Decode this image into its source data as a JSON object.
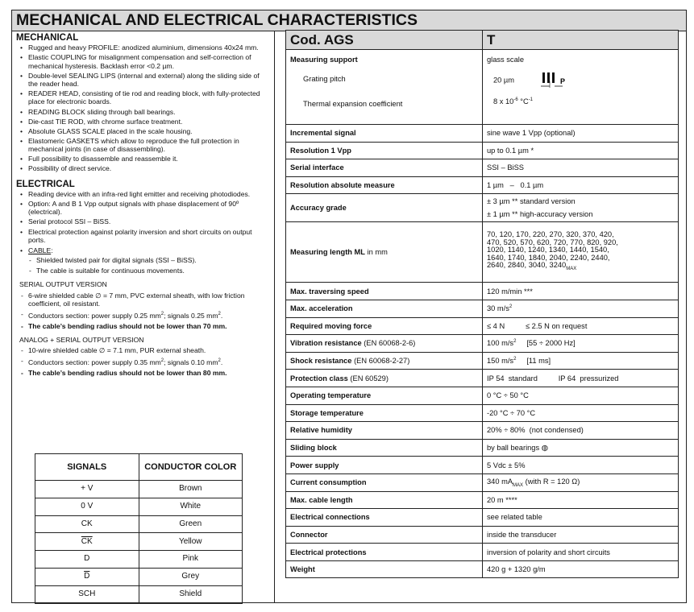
{
  "title": "MECHANICAL AND ELECTRICAL CHARACTERISTICS",
  "mechanical": {
    "heading": "MECHANICAL",
    "items": [
      "Rugged and heavy PROFILE: anodized aluminium, dimensions 40x24 mm.",
      "Elastic COUPLING for misalignment compensation and self-correction of mechanical hysteresis. Backlash error <0.2 µm.",
      "Double-level SEALING LIPS (internal and external) along the sliding side of the reader head.",
      "READER HEAD, consisting of tie rod and reading block, with fully-protected place for electronic boards.",
      "READING BLOCK sliding through ball bearings.",
      "Die-cast TIE ROD, with chrome surface treatment.",
      "Absolute GLASS SCALE placed in the scale housing.",
      "Elastomeric GASKETS which allow to reproduce the full protection in mechanical joints (in case of disassembling).",
      "Full possibility to disassemble and reassemble it.",
      "Possibility of direct service."
    ]
  },
  "electrical": {
    "heading": "ELECTRICAL",
    "items": [
      "Reading device with an infra-red light emitter and receiving photodiodes.",
      "Option: A and B 1 Vpp output signals with phase displacement of 90º (electrical).",
      "Serial protocol SSI – BiSS.",
      "Electrical protection against polarity inversion and short circuits on output ports."
    ],
    "cable_label": "CABLE",
    "cable_items": [
      "Shielded twisted pair for digital signals (SSI – BiSS).",
      "The cable is suitable for continuous movements."
    ],
    "serial": {
      "heading": "SERIAL OUTPUT VERSION",
      "line1": "6-wire shielded cable ∅ = 7 mm, PVC external sheath, with low friction coefficient, oil resistant.",
      "line2_a": "Conductors section: power supply 0.25 mm",
      "line2_b": "; signals 0.25 mm",
      "line2_c": ".",
      "sup": "2",
      "line3": "The cable’s bending radius should not be lower than 70 mm."
    },
    "analog": {
      "heading": "ANALOG + SERIAL OUTPUT VERSION",
      "line1": "10-wire shielded cable ∅ = 7.1 mm, PUR external sheath.",
      "line2_a": "Conductors section: power supply 0.35 mm",
      "line2_b": "; signals 0.10 mm",
      "line2_c": ".",
      "sup": "2",
      "line3": "The cable’s bending radius should not be lower than 80 mm."
    }
  },
  "signals_table": {
    "headers": [
      "SIGNALS",
      "CONDUCTOR COLOR"
    ],
    "rows": [
      {
        "signal": "+ V",
        "color": "Brown",
        "overline": false
      },
      {
        "signal": "0 V",
        "color": "White",
        "overline": false
      },
      {
        "signal": "CK",
        "color": "Green",
        "overline": false
      },
      {
        "signal": "CK",
        "color": "Yellow",
        "overline": true
      },
      {
        "signal": "D",
        "color": "Pink",
        "overline": false
      },
      {
        "signal": "D",
        "color": "Grey",
        "overline": true
      },
      {
        "signal": "SCH",
        "color": "Shield",
        "overline": false
      }
    ]
  },
  "spec": {
    "header": [
      "Cod. AGS",
      "T"
    ],
    "measuring_support": {
      "label": "Measuring support",
      "value": "glass scale",
      "pitch_label": "Grating pitch",
      "pitch_value": "20 µm",
      "pitch_symbol": "P",
      "thermal_label": "Thermal expansion coefficient",
      "thermal_a": "8 x 10",
      "thermal_exp": "-6",
      "thermal_b": " °C",
      "thermal_exp2": "-1"
    },
    "rows": [
      {
        "label": "Incremental signal",
        "value": [
          {
            "t": "sine wave 1 Vpp (optional)"
          }
        ]
      },
      {
        "label": "Resolution 1 Vpp",
        "value": [
          {
            "t": "up to 0.1 µm *"
          }
        ]
      },
      {
        "label": "Serial interface",
        "value": [
          {
            "t": "SSI – BiSS"
          }
        ]
      },
      {
        "label": "Resolution absolute measure",
        "value": [
          {
            "t": "1 µm   –   0.1 µm"
          }
        ]
      },
      {
        "label": "Accuracy grade",
        "value": [
          {
            "t": "± 3 µm ** standard version"
          },
          {
            "br": true
          },
          {
            "t": "± 1 µm ** high-accuracy version"
          }
        ],
        "tall": 1
      },
      {
        "label": "Measuring length ML",
        "label_suffix": " in mm",
        "value": [
          {
            "t": "70, 120, 170, 220, 270, 320, 370, 420, 470, 520, 570, 620, 720, 770, 820, 920, 1020, 1140, 1240, 1340, 1440, 1540, 1640, 1740, 1840, 2040, 2240, 2440, 2640, 2840, 3040, 3240"
          },
          {
            "sub": "MAX"
          }
        ],
        "tall": 2
      },
      {
        "label": "Max. traversing speed",
        "value": [
          {
            "t": "120 m/min ***"
          }
        ]
      },
      {
        "label": "Max. acceleration",
        "value": [
          {
            "t": "30 m/s"
          },
          {
            "sup": "2"
          }
        ]
      },
      {
        "label": "Required moving force",
        "value": [
          {
            "t": "≤ 4 N          ≤ 2.5 N on request"
          }
        ]
      },
      {
        "label": "Vibration resistance",
        "label_suffix": " (EN 60068-2-6)",
        "value": [
          {
            "t": "100 m/s"
          },
          {
            "sup": "2"
          },
          {
            "t": "     [55 ÷ 2000 Hz]"
          }
        ]
      },
      {
        "label": "Shock resistance",
        "label_suffix": " (EN 60068-2-27)",
        "value": [
          {
            "t": "150 m/s"
          },
          {
            "sup": "2"
          },
          {
            "t": "     [11 ms]"
          }
        ]
      },
      {
        "label": "Protection class",
        "label_suffix": " (EN 60529)",
        "value": [
          {
            "t": "IP 54  standard          IP 64  pressurized"
          }
        ]
      },
      {
        "label": "Operating temperature",
        "value": [
          {
            "t": "0 °C ÷ 50 °C"
          }
        ]
      },
      {
        "label": "Storage temperature",
        "value": [
          {
            "t": "-20 °C ÷ 70 °C"
          }
        ]
      },
      {
        "label": "Relative humidity",
        "value": [
          {
            "t": "20% ÷ 80%  (not condensed)"
          }
        ]
      },
      {
        "label": "Sliding block",
        "value": [
          {
            "t": "by ball bearings ◍"
          }
        ]
      },
      {
        "label": "Power supply",
        "value": [
          {
            "t": "5 Vdc ± 5%"
          }
        ]
      },
      {
        "label": "Current consumption",
        "value": [
          {
            "t": "340 mA"
          },
          {
            "sub": "MAX"
          },
          {
            "t": " (with R = 120 Ω)"
          }
        ]
      },
      {
        "label": "Max. cable length",
        "value": [
          {
            "t": "20 m ****"
          }
        ]
      },
      {
        "label": "Electrical connections",
        "value": [
          {
            "t": "see related table"
          }
        ]
      },
      {
        "label": "Connector",
        "value": [
          {
            "t": "inside the transducer"
          }
        ]
      },
      {
        "label": "Electrical protections",
        "value": [
          {
            "t": "inversion of polarity and short circuits"
          }
        ]
      },
      {
        "label": "Weight",
        "value": [
          {
            "t": "420 g + 1320 g/m"
          }
        ]
      }
    ]
  }
}
